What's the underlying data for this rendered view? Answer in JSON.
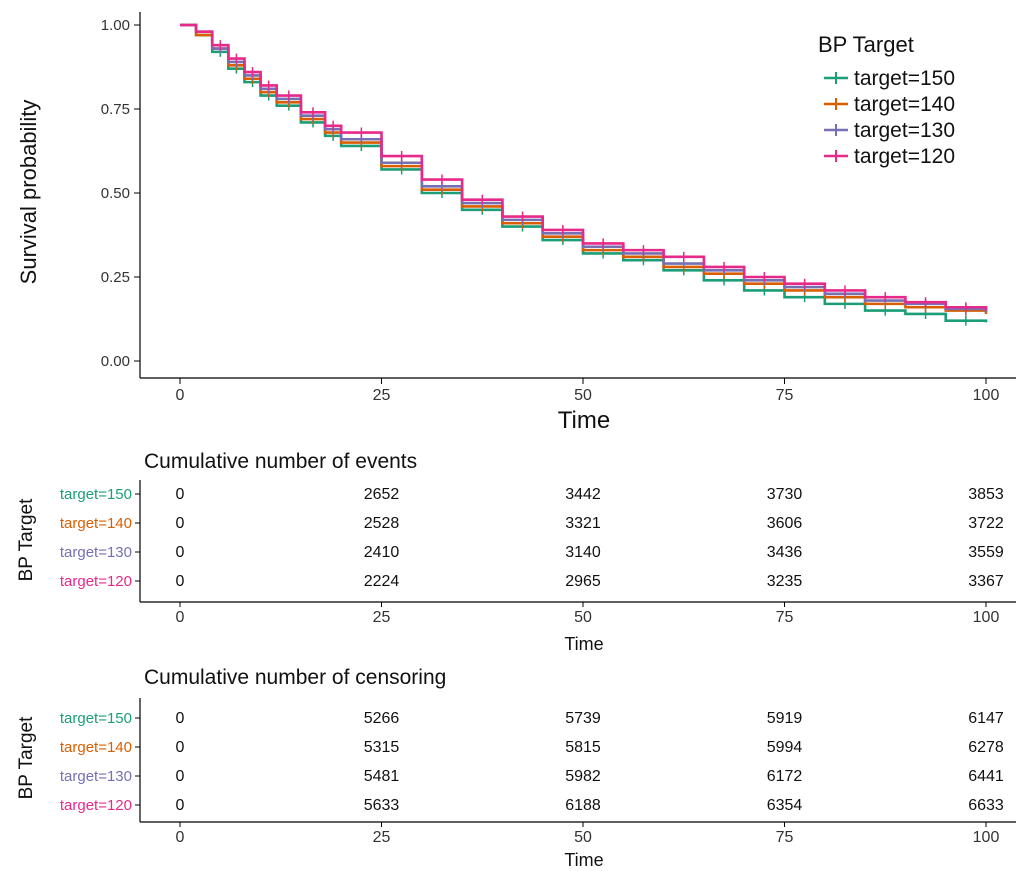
{
  "chart_data": [
    {
      "type": "line",
      "step": true,
      "title": "",
      "xlabel": "Time",
      "ylabel": "Survival probability",
      "xlim": [
        0,
        100
      ],
      "ylim": [
        0,
        1
      ],
      "x_ticks": [
        0,
        25,
        50,
        75,
        100
      ],
      "x_tick_labels": [
        "0",
        "25",
        "50",
        "75",
        "100"
      ],
      "y_ticks": [
        0,
        0.25,
        0.5,
        0.75,
        1
      ],
      "y_tick_labels": [
        "0.00",
        "0.25",
        "0.50",
        "0.75",
        "1.00"
      ],
      "grid": false,
      "legend": {
        "title": "BP Target",
        "position": "top-right"
      },
      "x": [
        0,
        2,
        4,
        6,
        8,
        10,
        12,
        15,
        18,
        20,
        25,
        30,
        35,
        40,
        45,
        50,
        55,
        60,
        65,
        70,
        75,
        80,
        85,
        90,
        95,
        100
      ],
      "series": [
        {
          "name": "target=150",
          "color": "#1b9e77",
          "values": [
            1.0,
            0.97,
            0.92,
            0.87,
            0.83,
            0.79,
            0.76,
            0.71,
            0.67,
            0.64,
            0.57,
            0.5,
            0.45,
            0.4,
            0.36,
            0.32,
            0.3,
            0.27,
            0.24,
            0.21,
            0.19,
            0.17,
            0.15,
            0.14,
            0.12,
            0.115
          ]
        },
        {
          "name": "target=140",
          "color": "#d95f02",
          "values": [
            1.0,
            0.97,
            0.93,
            0.88,
            0.84,
            0.8,
            0.77,
            0.72,
            0.68,
            0.65,
            0.58,
            0.51,
            0.46,
            0.41,
            0.37,
            0.33,
            0.31,
            0.28,
            0.26,
            0.23,
            0.21,
            0.19,
            0.17,
            0.16,
            0.15,
            0.14
          ]
        },
        {
          "name": "target=130",
          "color": "#7570b3",
          "values": [
            1.0,
            0.98,
            0.93,
            0.89,
            0.85,
            0.81,
            0.78,
            0.73,
            0.69,
            0.66,
            0.59,
            0.52,
            0.47,
            0.42,
            0.38,
            0.34,
            0.32,
            0.29,
            0.27,
            0.24,
            0.22,
            0.2,
            0.18,
            0.17,
            0.155,
            0.145
          ]
        },
        {
          "name": "target=120",
          "color": "#e7298a",
          "values": [
            1.0,
            0.98,
            0.94,
            0.9,
            0.86,
            0.82,
            0.79,
            0.74,
            0.7,
            0.68,
            0.61,
            0.54,
            0.48,
            0.43,
            0.39,
            0.35,
            0.33,
            0.31,
            0.28,
            0.25,
            0.23,
            0.21,
            0.19,
            0.175,
            0.16,
            0.15
          ]
        }
      ]
    },
    {
      "type": "table",
      "title": "Cumulative number of events",
      "xlabel": "Time",
      "ylabel": "BP Target",
      "x_ticks": [
        0,
        25,
        50,
        75,
        100
      ],
      "x_tick_labels": [
        "0",
        "25",
        "50",
        "75",
        "100"
      ],
      "rows": [
        {
          "label": "target=150",
          "color": "#1b9e77",
          "values": [
            "0",
            "2652",
            "3442",
            "3730",
            "3853"
          ]
        },
        {
          "label": "target=140",
          "color": "#d95f02",
          "values": [
            "0",
            "2528",
            "3321",
            "3606",
            "3722"
          ]
        },
        {
          "label": "target=130",
          "color": "#7570b3",
          "values": [
            "0",
            "2410",
            "3140",
            "3436",
            "3559"
          ]
        },
        {
          "label": "target=120",
          "color": "#e7298a",
          "values": [
            "0",
            "2224",
            "2965",
            "3235",
            "3367"
          ]
        }
      ]
    },
    {
      "type": "table",
      "title": "Cumulative number of censoring",
      "xlabel": "Time",
      "ylabel": "BP Target",
      "x_ticks": [
        0,
        25,
        50,
        75,
        100
      ],
      "x_tick_labels": [
        "0",
        "25",
        "50",
        "75",
        "100"
      ],
      "rows": [
        {
          "label": "target=150",
          "color": "#1b9e77",
          "values": [
            "0",
            "5266",
            "5739",
            "5919",
            "6147"
          ]
        },
        {
          "label": "target=140",
          "color": "#d95f02",
          "values": [
            "0",
            "5315",
            "5815",
            "5994",
            "6278"
          ]
        },
        {
          "label": "target=130",
          "color": "#7570b3",
          "values": [
            "0",
            "5481",
            "5982",
            "6172",
            "6441"
          ]
        },
        {
          "label": "target=120",
          "color": "#e7298a",
          "values": [
            "0",
            "5633",
            "6188",
            "6354",
            "6633"
          ]
        }
      ]
    }
  ]
}
